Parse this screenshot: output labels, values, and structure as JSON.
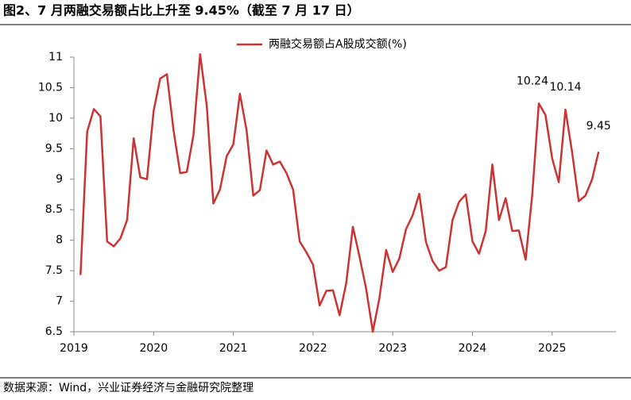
{
  "chart_data": {
    "type": "line",
    "title": "图2、7 月两融交易额占比上升至 9.45%（截至 7 月 17 日）",
    "source": "数据来源：Wind，兴业证券经济与金融研究院整理",
    "x": [
      2019.083,
      2019.167,
      2019.25,
      2019.333,
      2019.417,
      2019.5,
      2019.583,
      2019.667,
      2019.75,
      2019.833,
      2019.917,
      2020.0,
      2020.083,
      2020.167,
      2020.25,
      2020.333,
      2020.417,
      2020.5,
      2020.583,
      2020.667,
      2020.75,
      2020.833,
      2020.917,
      2021.0,
      2021.083,
      2021.167,
      2021.25,
      2021.333,
      2021.417,
      2021.5,
      2021.583,
      2021.667,
      2021.75,
      2021.833,
      2021.917,
      2022.0,
      2022.083,
      2022.167,
      2022.25,
      2022.333,
      2022.417,
      2022.5,
      2022.583,
      2022.667,
      2022.75,
      2022.833,
      2022.917,
      2023.0,
      2023.083,
      2023.167,
      2023.25,
      2023.333,
      2023.417,
      2023.5,
      2023.583,
      2023.667,
      2023.75,
      2023.833,
      2023.917,
      2024.0,
      2024.083,
      2024.167,
      2024.25,
      2024.333,
      2024.417,
      2024.5,
      2024.583,
      2024.667,
      2024.75,
      2024.833,
      2024.917,
      2025.0,
      2025.083,
      2025.167,
      2025.25,
      2025.333,
      2025.417,
      2025.5,
      2025.583
    ],
    "series": [
      {
        "name": "两融交易额占A股成交额(%)",
        "color": "#cc3333",
        "values": [
          7.43,
          9.78,
          10.15,
          10.03,
          7.98,
          7.9,
          8.03,
          8.33,
          9.67,
          9.03,
          9.0,
          10.12,
          10.65,
          10.72,
          9.8,
          9.1,
          9.12,
          9.72,
          11.05,
          10.2,
          8.6,
          8.83,
          9.38,
          9.57,
          10.4,
          9.8,
          8.73,
          8.82,
          9.47,
          9.24,
          9.29,
          9.1,
          8.83,
          7.98,
          7.8,
          7.6,
          6.93,
          7.17,
          7.18,
          6.77,
          7.3,
          8.22,
          7.73,
          7.2,
          6.5,
          7.05,
          7.84,
          7.48,
          7.7,
          8.18,
          8.41,
          8.76,
          7.97,
          7.66,
          7.5,
          7.56,
          8.33,
          8.63,
          8.75,
          7.98,
          7.78,
          8.15,
          9.24,
          8.33,
          8.69,
          8.15,
          8.16,
          7.68,
          8.74,
          10.24,
          10.05,
          9.34,
          8.95,
          10.14,
          9.45,
          8.64,
          8.73,
          8.99,
          9.45
        ]
      }
    ],
    "xlim": [
      2019,
      2025.8
    ],
    "xticks": [
      2019,
      2020,
      2021,
      2022,
      2023,
      2024,
      2025
    ],
    "ylim": [
      6.5,
      11
    ],
    "yticks": [
      6.5,
      7,
      7.5,
      8,
      8.5,
      9,
      9.5,
      10,
      10.5,
      11
    ],
    "grid": false,
    "legend": "top"
  }
}
